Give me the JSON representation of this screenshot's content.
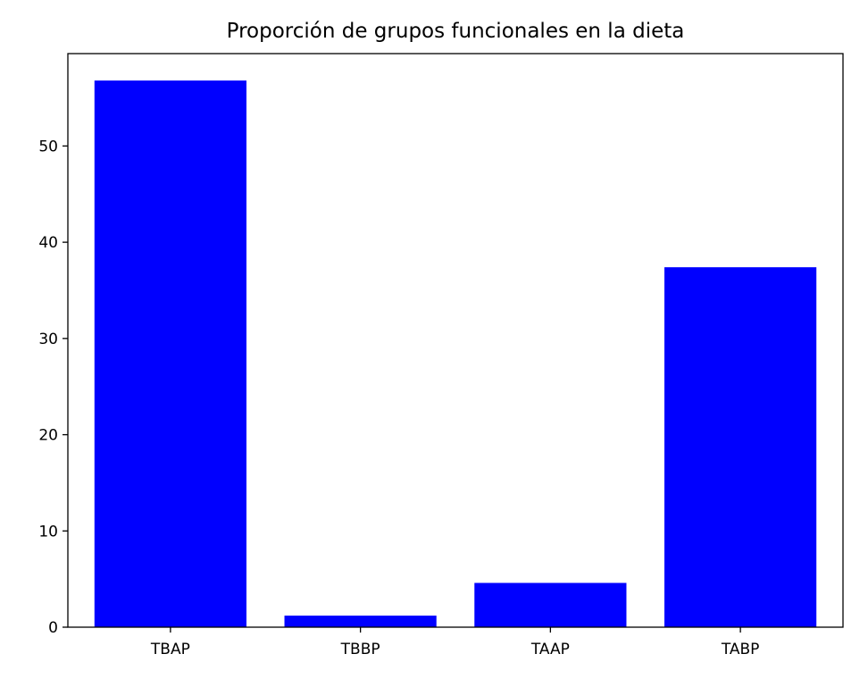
{
  "chart_data": {
    "type": "bar",
    "title": "Proporción de grupos funcionales en la dieta",
    "xlabel": "",
    "ylabel": "",
    "categories": [
      "TBAP",
      "TBBP",
      "TAAP",
      "TABP"
    ],
    "values": [
      56.8,
      1.2,
      4.6,
      37.4
    ],
    "ylim": [
      0,
      59.6
    ],
    "yticks": [
      0,
      10,
      20,
      30,
      40,
      50
    ],
    "grid": false,
    "bar_color": "#0000ff"
  }
}
